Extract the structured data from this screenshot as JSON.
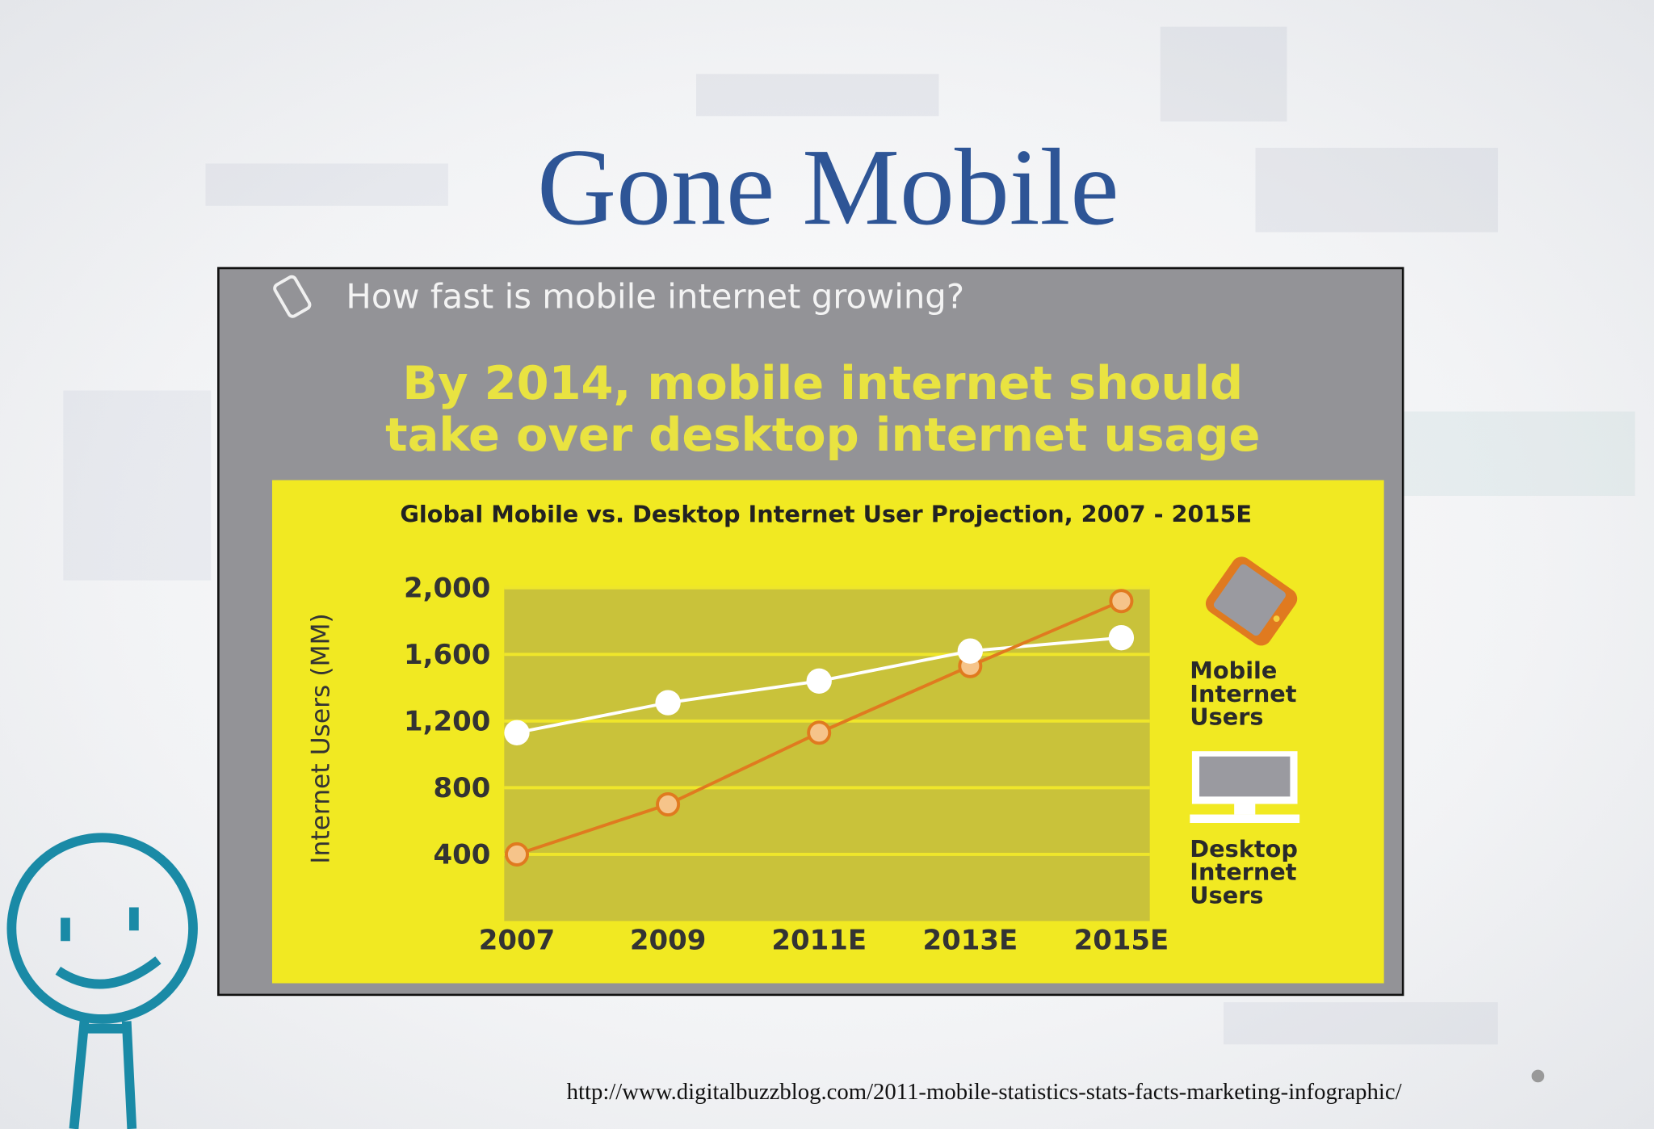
{
  "slide": {
    "title": "Gone Mobile",
    "source": "http://www.digitalbuzzblog.com/2011-mobile-statistics-stats-facts-marketing-infographic/"
  },
  "chart_data": {
    "type": "line",
    "header": "How fast is mobile internet growing?",
    "headline": [
      "By 2014, mobile internet should",
      "take over desktop internet usage"
    ],
    "title": "Global Mobile vs. Desktop Internet User Projection, 2007 - 2015E",
    "y_label": "Internet Users (MM)",
    "categories": [
      "2007",
      "2009",
      "2011E",
      "2013E",
      "2015E"
    ],
    "series": [
      {
        "name": "Mobile Internet Users",
        "color": "#e07a1f",
        "values": [
          400,
          700,
          1130,
          1530,
          1920
        ]
      },
      {
        "name": "Desktop Internet Users",
        "color": "#ffffff",
        "values": [
          1130,
          1310,
          1440,
          1620,
          1700
        ]
      }
    ],
    "ylim": [
      0,
      2000
    ],
    "yticks": [
      400,
      {
        "value": 800,
        "label": "800"
      },
      {
        "value": 1200,
        "label": "1,200"
      },
      {
        "value": 1600,
        "label": "1,600"
      },
      {
        "value": 2000,
        "label": "2,000"
      }
    ],
    "grid": true
  }
}
